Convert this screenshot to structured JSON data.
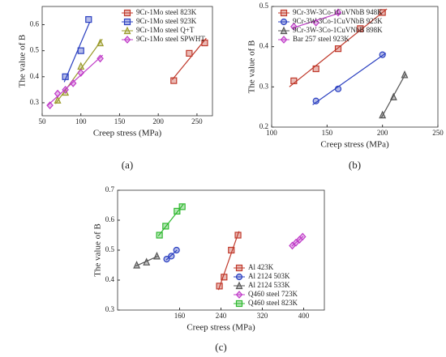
{
  "chart_data": [
    {
      "type": "scatter",
      "label": "(a)",
      "xlabel": "Creep stress (MPa)",
      "ylabel": "The value of B",
      "xlim": [
        50,
        270
      ],
      "xticks": [
        50,
        100,
        150,
        200,
        250
      ],
      "ylim": [
        0.25,
        0.67
      ],
      "yticks": [
        0.3,
        0.4,
        0.5,
        0.6
      ],
      "legend": "upper right",
      "series": [
        {
          "name": "9Cr-1Mo steel 823K",
          "color": "#c0392b",
          "marker": "square",
          "x": [
            220,
            240,
            260
          ],
          "values": [
            0.385,
            0.49,
            0.53
          ]
        },
        {
          "name": "9Cr-1Mo steel 923K",
          "color": "#2a3fc0",
          "marker": "square",
          "x": [
            80,
            100,
            110
          ],
          "values": [
            0.4,
            0.5,
            0.62
          ]
        },
        {
          "name": "9Cr-1Mo steel Q+T",
          "color": "#9a9a2a",
          "marker": "triangle",
          "x": [
            70,
            80,
            100,
            125
          ],
          "values": [
            0.31,
            0.34,
            0.44,
            0.53
          ]
        },
        {
          "name": "9Cr-1Mo steel SPWHT",
          "color": "#c03cc8",
          "marker": "diamond",
          "x": [
            60,
            70,
            80,
            90,
            100,
            125
          ],
          "values": [
            0.29,
            0.335,
            0.35,
            0.375,
            0.415,
            0.47
          ]
        }
      ]
    },
    {
      "type": "scatter",
      "label": "(b)",
      "xlabel": "Creep stress (MPa)",
      "ylabel": "The value of B",
      "xlim": [
        100,
        250
      ],
      "xticks": [
        100,
        150,
        200,
        250
      ],
      "ylim": [
        0.2,
        0.5
      ],
      "yticks": [
        0.2,
        0.3,
        0.4,
        0.5
      ],
      "legend": "upper left",
      "series": [
        {
          "name": "9Cr-3W-3Co-1CuVNbB 948K",
          "color": "#c0392b",
          "marker": "square",
          "x": [
            120,
            140,
            160,
            180,
            200
          ],
          "values": [
            0.315,
            0.345,
            0.395,
            0.445,
            0.485
          ]
        },
        {
          "name": "9Cr-3W-3Co-1CuVNbB 923K",
          "color": "#2a3fc0",
          "marker": "circle",
          "x": [
            140,
            160,
            200
          ],
          "values": [
            0.265,
            0.295,
            0.38
          ]
        },
        {
          "name": "9Cr-3W-3Co-1CuVNbB 898K",
          "color": "#555555",
          "marker": "triangle",
          "x": [
            200,
            210,
            220
          ],
          "values": [
            0.23,
            0.275,
            0.33
          ]
        },
        {
          "name": "Bar 257 steel 923K",
          "color": "#c03cc8",
          "marker": "diamond",
          "x": [
            120,
            140,
            160
          ],
          "values": [
            0.45,
            0.46,
            0.485
          ]
        }
      ]
    },
    {
      "type": "scatter",
      "label": "(c)",
      "xlabel": "Creep stress (MPa)",
      "ylabel": "The value of B",
      "xlim": [
        40,
        440
      ],
      "xticks": [
        160,
        240,
        320,
        400
      ],
      "ylim": [
        0.3,
        0.7
      ],
      "yticks": [
        0.3,
        0.4,
        0.5,
        0.6,
        0.7
      ],
      "legend": "lower right",
      "series": [
        {
          "name": "Al 423K",
          "color": "#c0392b",
          "marker": "square",
          "x": [
            237,
            246,
            260,
            273
          ],
          "values": [
            0.38,
            0.41,
            0.5,
            0.55
          ]
        },
        {
          "name": "Al 2124 503K",
          "color": "#2a3fc0",
          "marker": "circle",
          "x": [
            135,
            144,
            154
          ],
          "values": [
            0.47,
            0.48,
            0.5
          ]
        },
        {
          "name": "Al 2124 533K",
          "color": "#555555",
          "marker": "triangle",
          "x": [
            77,
            96,
            116
          ],
          "values": [
            0.45,
            0.46,
            0.48
          ]
        },
        {
          "name": "Q460 steel 723K",
          "color": "#c03cc8",
          "marker": "diamond",
          "x": [
            378,
            385,
            392,
            398
          ],
          "values": [
            0.515,
            0.525,
            0.535,
            0.545
          ]
        },
        {
          "name": "Q460 steel 823K",
          "color": "#2fb82f",
          "marker": "square",
          "x": [
            121,
            133,
            155,
            165
          ],
          "values": [
            0.55,
            0.58,
            0.63,
            0.645
          ]
        }
      ]
    }
  ]
}
